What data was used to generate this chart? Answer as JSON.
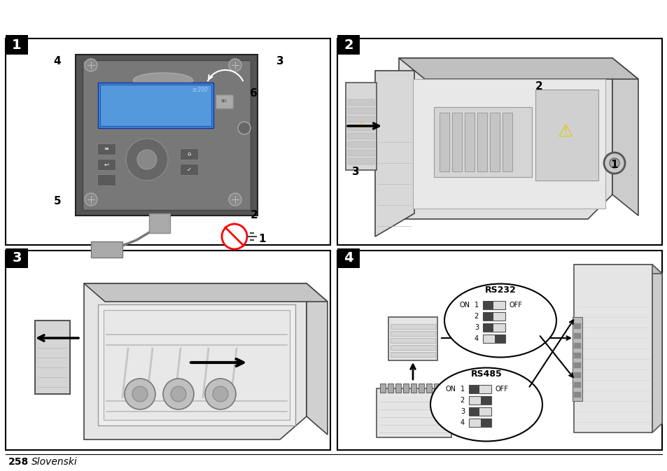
{
  "page_width": 9.54,
  "page_height": 6.73,
  "dpi": 100,
  "background": "#ffffff",
  "border_color": "#000000",
  "panel_label_bg": "#000000",
  "panel_label_color": "#ffffff",
  "panel_labels": [
    "1",
    "2",
    "3",
    "4"
  ],
  "footer_number": "258",
  "footer_text": "  Slovenski",
  "panel_border_linewidth": 1.5,
  "label_fontsize": 14,
  "footer_fontsize": 10,
  "line_color": "#000000"
}
